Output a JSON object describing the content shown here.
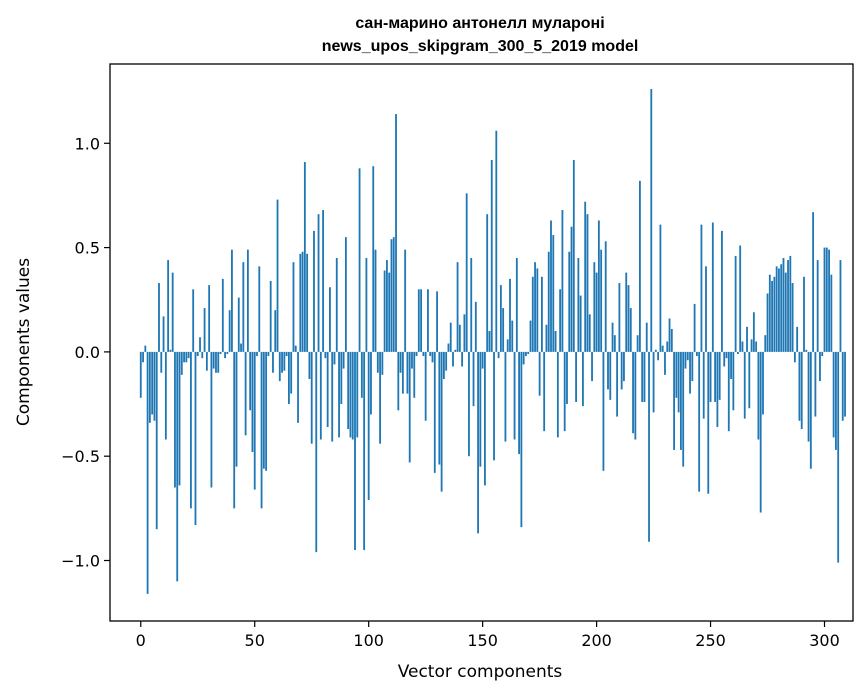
{
  "chart_data": {
    "type": "bar",
    "title": [
      "сан-марино антонелл мулароні",
      "news_upos_skipgram_300_5_2019 model"
    ],
    "xlabel": "Vector components",
    "ylabel": "Components values",
    "xlim": [
      -13.5,
      312.5
    ],
    "ylim": [
      -1.29,
      1.38
    ],
    "xticks": [
      0,
      50,
      100,
      150,
      200,
      250,
      300
    ],
    "xtick_labels": [
      "0",
      "50",
      "100",
      "150",
      "200",
      "250",
      "300"
    ],
    "yticks": [
      -1.0,
      -0.5,
      0.0,
      0.5,
      1.0
    ],
    "ytick_labels": [
      "−1.0",
      "−0.5",
      "0.0",
      "0.5",
      "1.0"
    ],
    "bar_color": "#1f77b4",
    "values": [
      -0.22,
      -0.05,
      0.03,
      -1.16,
      -0.34,
      -0.3,
      -0.33,
      -0.85,
      0.33,
      -0.1,
      0.17,
      -0.42,
      0.44,
      0.01,
      0.38,
      -0.65,
      -1.1,
      -0.64,
      -0.11,
      -0.05,
      -0.05,
      -0.03,
      -0.75,
      0.3,
      -0.83,
      -0.02,
      0.07,
      -0.03,
      0.21,
      -0.09,
      0.32,
      -0.65,
      -0.08,
      -0.1,
      -0.1,
      -0.01,
      0.35,
      -0.03,
      -0.01,
      0.2,
      0.49,
      -0.75,
      -0.55,
      0.26,
      0.04,
      0.43,
      -0.4,
      0.49,
      -0.28,
      -0.48,
      -0.66,
      -0.02,
      0.41,
      -0.75,
      -0.56,
      -0.57,
      -0.02,
      0.34,
      -0.1,
      0.2,
      0.73,
      -0.14,
      -0.1,
      -0.09,
      -0.02,
      -0.25,
      -0.2,
      0.43,
      0.03,
      -0.34,
      0.47,
      0.48,
      0.91,
      0.47,
      -0.13,
      -0.44,
      0.58,
      -0.96,
      0.66,
      -0.42,
      0.68,
      -0.03,
      -0.36,
      0.31,
      -0.43,
      -0.06,
      0.45,
      -0.41,
      -0.25,
      -0.08,
      0.55,
      -0.37,
      -0.41,
      -0.42,
      -0.95,
      -0.41,
      0.88,
      -0.22,
      -0.95,
      0.45,
      -0.71,
      -0.3,
      0.89,
      0.49,
      -0.1,
      -0.44,
      -0.11,
      0.39,
      0.44,
      0.38,
      0.54,
      0.55,
      1.14,
      -0.28,
      -0.1,
      -0.2,
      0.49,
      -0.2,
      -0.53,
      -0.08,
      -0.22,
      -0.02,
      0.3,
      0.3,
      -0.02,
      -0.33,
      0.3,
      -0.02,
      -0.05,
      -0.58,
      0.29,
      -0.54,
      -0.67,
      -0.13,
      -0.09,
      0.04,
      0.14,
      -0.07,
      0.01,
      0.43,
      0.13,
      -0.07,
      0.18,
      0.76,
      -0.5,
      0.45,
      -0.26,
      0.24,
      -0.87,
      -0.55,
      -0.08,
      -0.64,
      0.66,
      0.1,
      0.92,
      -0.52,
      1.06,
      -0.03,
      0.32,
      0.21,
      -0.43,
      0.06,
      0.35,
      0.15,
      -0.42,
      0.45,
      -0.49,
      -0.84,
      -0.06,
      -0.02,
      -0.01,
      0.15,
      0.36,
      0.43,
      0.4,
      -0.21,
      0.36,
      -0.38,
      0.13,
      0.48,
      0.63,
      0.56,
      0.1,
      -0.41,
      0.3,
      0.68,
      -0.38,
      -0.25,
      0.48,
      0.6,
      0.92,
      -0.24,
      0.45,
      0.27,
      -0.26,
      0.72,
      0.66,
      0.18,
      -0.14,
      0.43,
      0.38,
      0.63,
      0.49,
      -0.57,
      0.53,
      -0.18,
      -0.23,
      0.14,
      0.08,
      -0.31,
      0.33,
      -0.18,
      -0.14,
      0.38,
      0.32,
      0.21,
      -0.39,
      -0.42,
      0.08,
      0.82,
      -0.24,
      -0.24,
      0.14,
      -0.91,
      1.26,
      -0.29,
      0.01,
      -0.04,
      0.61,
      0.03,
      -0.11,
      0.05,
      0.16,
      0.11,
      -0.47,
      -0.22,
      -0.29,
      -0.47,
      -0.55,
      -0.08,
      -0.04,
      -0.2,
      -0.14,
      0.23,
      -0.02,
      -0.67,
      0.61,
      -0.32,
      0.41,
      -0.68,
      -0.24,
      0.62,
      -0.24,
      -0.36,
      -0.23,
      0.58,
      -0.07,
      -0.03,
      -0.38,
      -0.13,
      -0.28,
      0.46,
      -0.01,
      0.51,
      0.05,
      -0.32,
      0.12,
      -0.27,
      0.06,
      0.19,
      0.05,
      -0.42,
      -0.77,
      -0.3,
      0.08,
      0.28,
      0.37,
      0.34,
      0.36,
      0.41,
      0.4,
      0.42,
      0.45,
      0.38,
      0.44,
      0.46,
      0.33,
      -0.05,
      0.12,
      -0.33,
      -0.37,
      0.36,
      0.01,
      -0.43,
      -0.56,
      0.67,
      -0.31,
      0.44,
      -0.14,
      -0.02,
      0.5,
      0.5,
      0.49,
      0.37,
      -0.41,
      -0.47,
      -1.01,
      0.44,
      -0.33,
      -0.31
    ]
  }
}
